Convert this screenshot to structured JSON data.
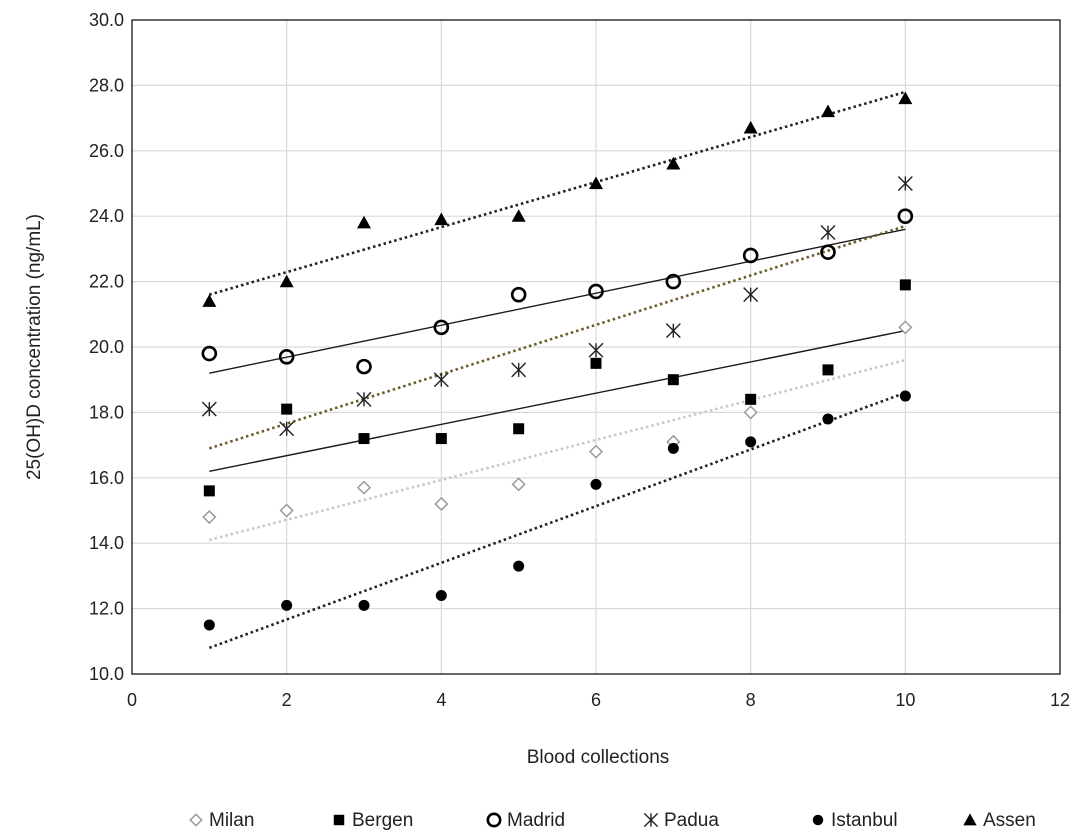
{
  "chart_data": {
    "type": "scatter",
    "title": "",
    "xlabel": "Blood collections",
    "ylabel": "25(OH)D concentration (ng/mL)",
    "xlim": [
      0,
      12
    ],
    "ylim": [
      10.0,
      30.0
    ],
    "x_ticks": [
      "0",
      "2",
      "4",
      "6",
      "8",
      "10",
      "12"
    ],
    "y_ticks": [
      "10.0",
      "12.0",
      "14.0",
      "16.0",
      "18.0",
      "20.0",
      "22.0",
      "24.0",
      "26.0",
      "28.0",
      "30.0"
    ],
    "grid": "vertical and horizontal",
    "legend_position": "bottom",
    "series": [
      {
        "name": "Milan",
        "marker": "diamond-open",
        "color": "#9a9a9a",
        "x": [
          1,
          2,
          3,
          4,
          5,
          6,
          7,
          8,
          10
        ],
        "y": [
          14.8,
          15.0,
          15.7,
          15.2,
          15.8,
          16.8,
          17.1,
          18.0,
          20.6
        ],
        "trendline": {
          "style": "dotted",
          "color": "#c8c8c8",
          "start": [
            1,
            14.1
          ],
          "end": [
            10,
            19.6
          ]
        }
      },
      {
        "name": "Bergen",
        "marker": "square-filled",
        "color": "#000000",
        "x": [
          1,
          2,
          3,
          4,
          5,
          6,
          7,
          8,
          9,
          10
        ],
        "y": [
          15.6,
          18.1,
          17.2,
          17.2,
          17.5,
          19.5,
          19.0,
          18.4,
          19.3,
          21.9
        ],
        "trendline": {
          "style": "solid",
          "color": "#1a1a1a",
          "start": [
            1,
            16.2
          ],
          "end": [
            10,
            20.5
          ]
        }
      },
      {
        "name": "Madrid",
        "marker": "circle-open",
        "color": "#000000",
        "x": [
          1,
          2,
          3,
          4,
          5,
          6,
          7,
          8,
          9,
          10
        ],
        "y": [
          19.8,
          19.7,
          19.4,
          20.6,
          21.6,
          21.7,
          22.0,
          22.8,
          22.9,
          24.0
        ],
        "trendline": {
          "style": "solid",
          "color": "#1a1a1a",
          "start": [
            1,
            19.2
          ],
          "end": [
            10,
            23.6
          ]
        }
      },
      {
        "name": "Padua",
        "marker": "asterisk",
        "color": "#222222",
        "x": [
          1,
          2,
          3,
          4,
          5,
          6,
          7,
          8,
          9,
          10
        ],
        "y": [
          18.1,
          17.5,
          18.4,
          19.0,
          19.3,
          19.9,
          20.5,
          21.6,
          23.5,
          25.0
        ],
        "trendline": {
          "style": "dotted",
          "color": "#6b5a2a",
          "start": [
            1,
            16.9
          ],
          "end": [
            10,
            23.7
          ]
        }
      },
      {
        "name": "Istanbul",
        "marker": "circle-filled",
        "color": "#000000",
        "x": [
          1,
          2,
          3,
          4,
          5,
          6,
          7,
          8,
          9,
          10
        ],
        "y": [
          11.5,
          12.1,
          12.1,
          12.4,
          13.3,
          15.8,
          16.9,
          17.1,
          17.8,
          18.5
        ],
        "trendline": {
          "style": "dotted",
          "color": "#222222",
          "start": [
            1,
            10.8
          ],
          "end": [
            10,
            18.6
          ]
        }
      },
      {
        "name": "Assen",
        "marker": "triangle-filled",
        "color": "#000000",
        "x": [
          1,
          2,
          3,
          4,
          5,
          6,
          7,
          8,
          9,
          10
        ],
        "y": [
          21.4,
          22.0,
          23.8,
          23.9,
          24.0,
          25.0,
          25.6,
          26.7,
          27.2,
          27.6
        ],
        "trendline": {
          "style": "dotted",
          "color": "#222222",
          "start": [
            1,
            21.6
          ],
          "end": [
            10,
            27.8
          ]
        }
      }
    ]
  }
}
